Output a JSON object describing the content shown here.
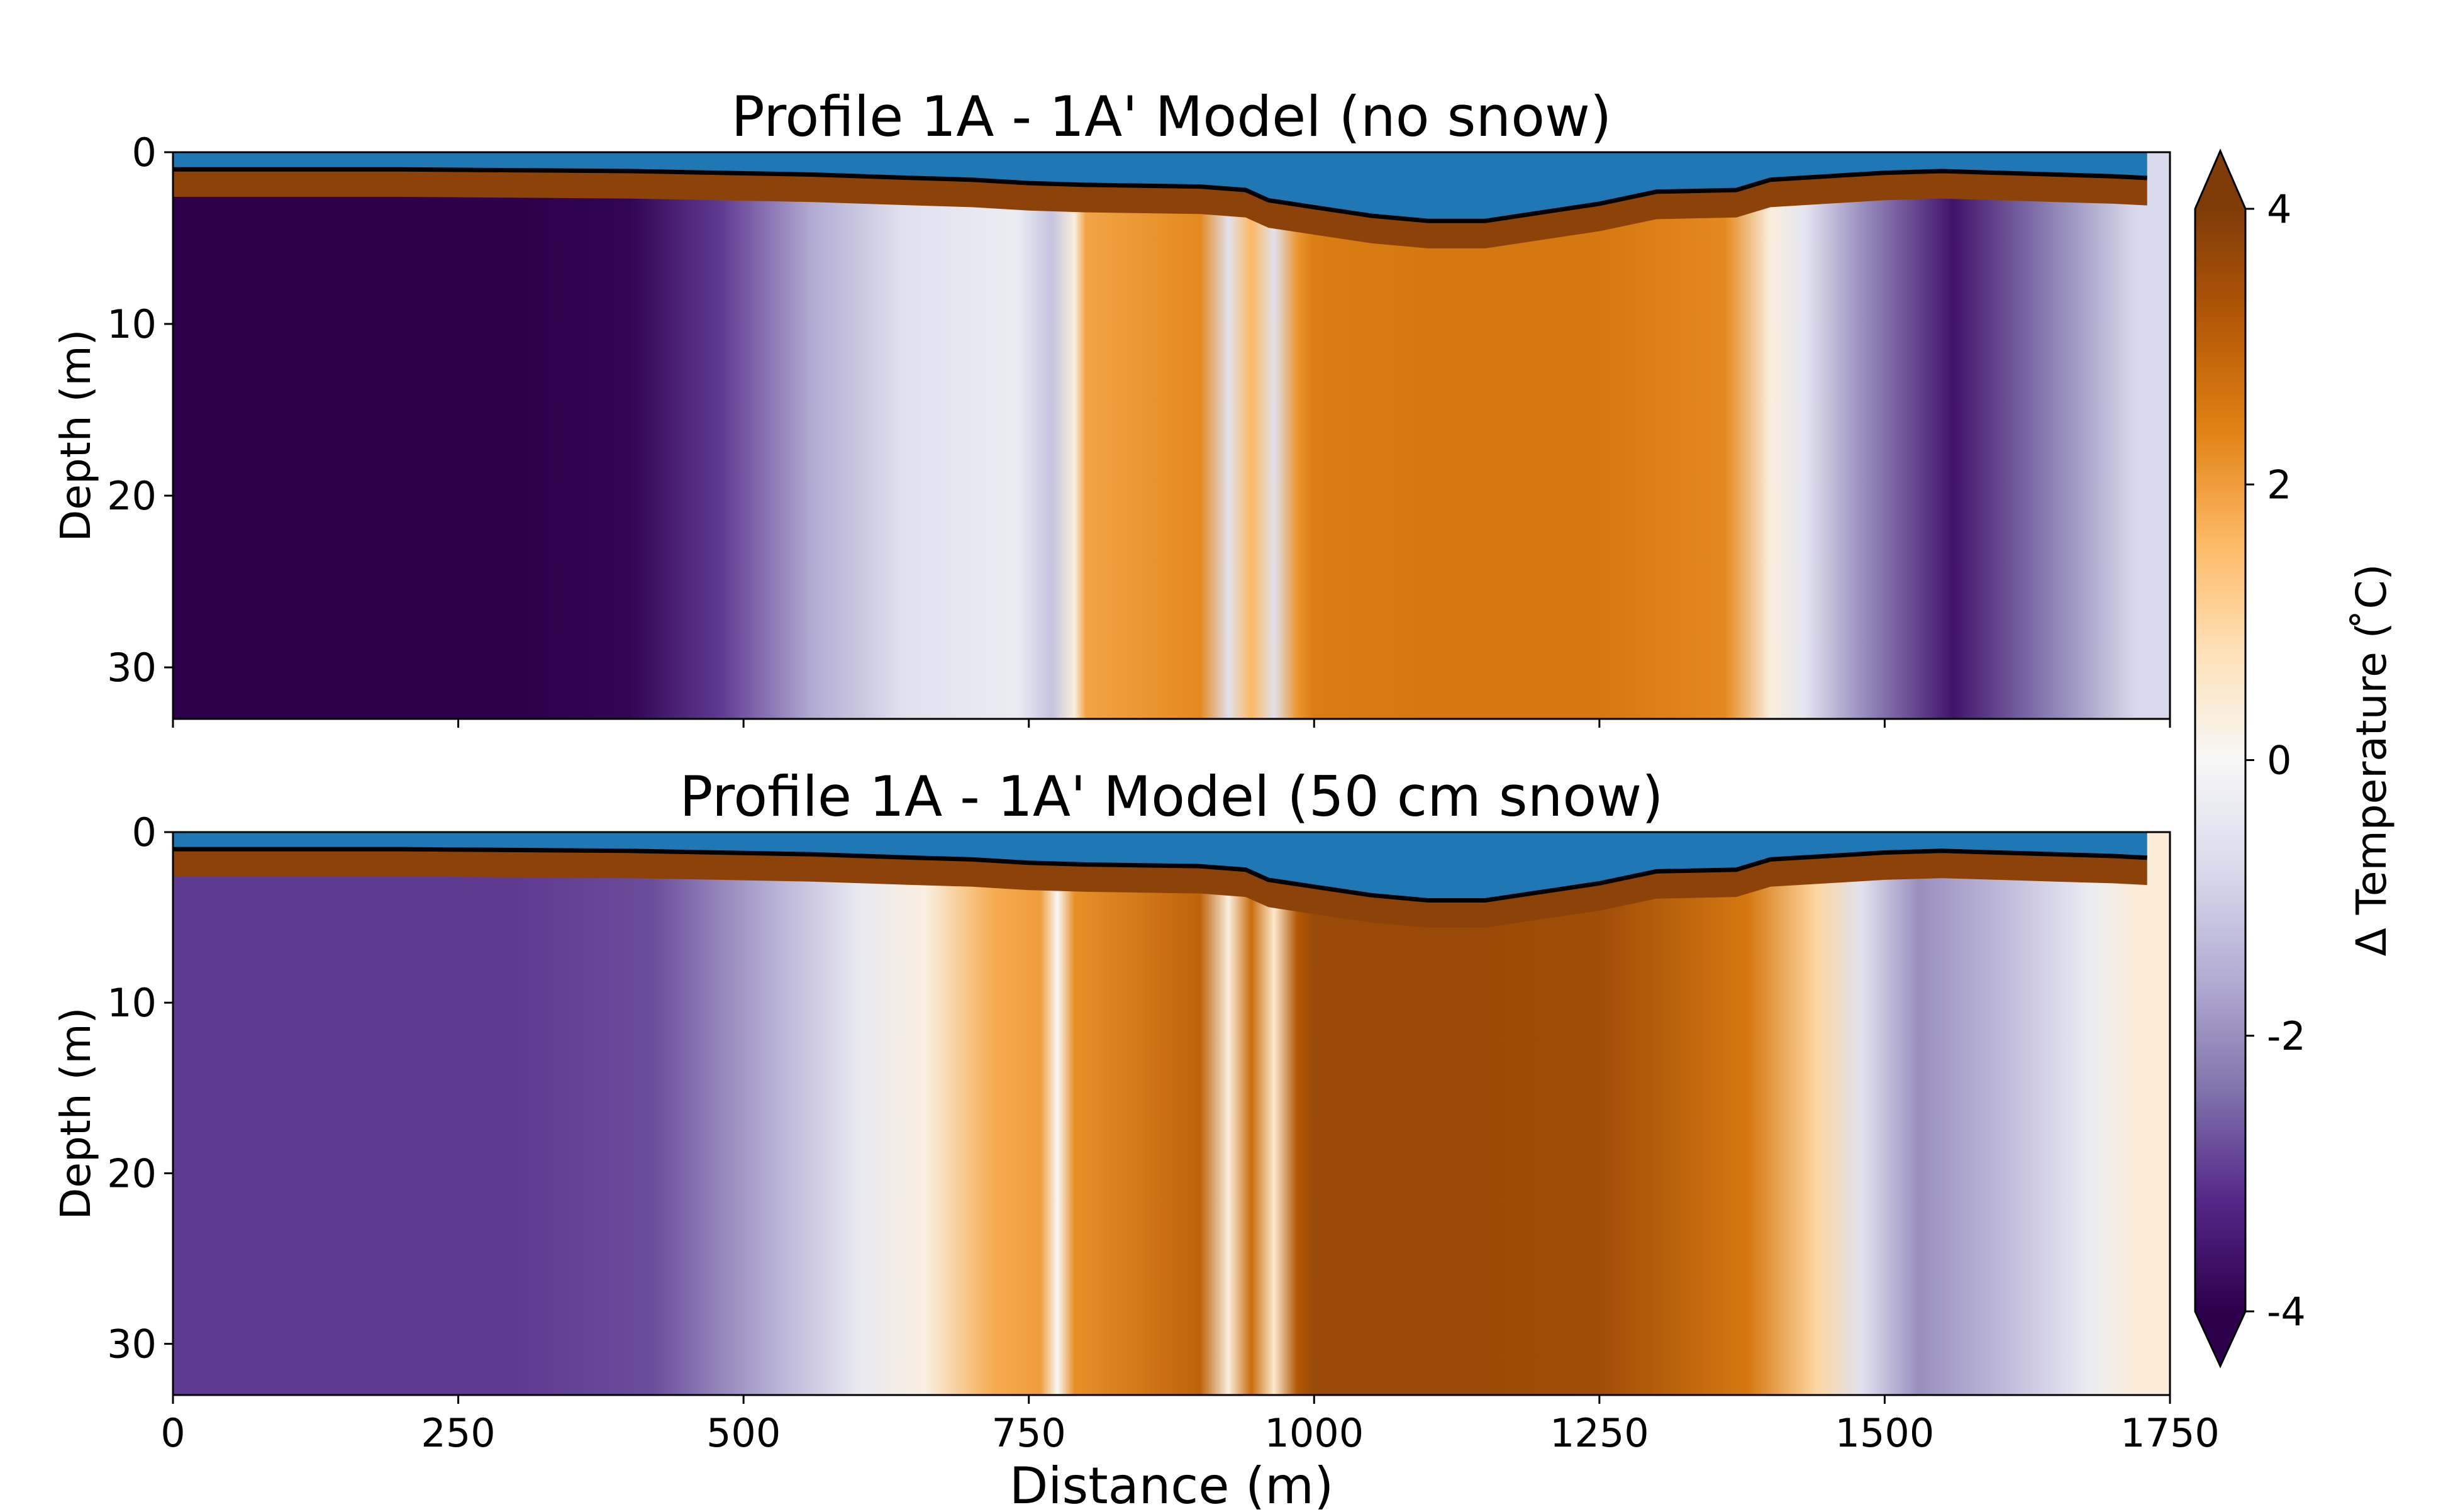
{
  "chart_data": {
    "type": "heatmap",
    "colorbar": {
      "label": "Δ Temperature ( ̊C)",
      "range": [
        -4,
        4
      ],
      "ticks": [
        "4",
        "2",
        "0",
        "-2",
        "-4"
      ],
      "colormap": "PuOr",
      "colors": [
        "#2d004b",
        "#542788",
        "#8073ac",
        "#b2abd2",
        "#d8daeb",
        "#f7f7f7",
        "#fee0b6",
        "#fdb863",
        "#e08214",
        "#b35806",
        "#7f3b08"
      ],
      "extend": "both"
    },
    "water_color": "#1f77b4",
    "panels": [
      {
        "title": "Profile 1A - 1A' Model (no snow)",
        "ylabel": "Depth (m)",
        "yticks": [
          "0",
          "10",
          "20",
          "30"
        ],
        "ylim": [
          33,
          0
        ],
        "xlim": [
          0,
          1750
        ],
        "xtick_labels_visible": false,
        "surface_profile": {
          "x": [
            0,
            200,
            400,
            560,
            650,
            700,
            750,
            800,
            900,
            940,
            960,
            1000,
            1050,
            1100,
            1150,
            1200,
            1250,
            1300,
            1370,
            1400,
            1450,
            1500,
            1550,
            1600,
            1650,
            1700,
            1730
          ],
          "depth": [
            1.0,
            1.0,
            1.1,
            1.3,
            1.5,
            1.6,
            1.8,
            1.9,
            2.0,
            2.2,
            2.8,
            3.2,
            3.7,
            4.0,
            4.0,
            3.5,
            3.0,
            2.3,
            2.2,
            1.6,
            1.4,
            1.2,
            1.1,
            1.2,
            1.3,
            1.4,
            1.5
          ]
        },
        "profile": {
          "x": [
            0,
            300,
            400,
            480,
            560,
            640,
            740,
            770,
            790,
            800,
            900,
            925,
            945,
            965,
            985,
            1000,
            1100,
            1250,
            1360,
            1400,
            1430,
            1480,
            1560,
            1640,
            1720
          ],
          "dT": [
            -4.0,
            -4.0,
            -3.9,
            -3.0,
            -1.6,
            -0.6,
            -0.3,
            -1.2,
            0.3,
            1.9,
            2.3,
            -0.6,
            1.6,
            -0.6,
            2.1,
            2.5,
            2.6,
            2.6,
            2.3,
            0.3,
            -0.5,
            -2.0,
            -3.6,
            -2.3,
            -0.8
          ]
        }
      },
      {
        "title": "Profile 1A - 1A' Model (50 cm snow)",
        "ylabel": "Depth (m)",
        "yticks": [
          "0",
          "10",
          "20",
          "30"
        ],
        "ylim": [
          33,
          0
        ],
        "xlim": [
          0,
          1750
        ],
        "xlabel": "Distance (m)",
        "xticks": [
          "0",
          "250",
          "500",
          "750",
          "1000",
          "1250",
          "1500",
          "1750"
        ],
        "surface_profile": {
          "x": [
            0,
            200,
            400,
            560,
            650,
            700,
            750,
            800,
            900,
            940,
            960,
            1000,
            1050,
            1100,
            1150,
            1200,
            1250,
            1300,
            1370,
            1400,
            1450,
            1500,
            1550,
            1600,
            1650,
            1700,
            1730
          ],
          "depth": [
            1.0,
            1.0,
            1.1,
            1.3,
            1.5,
            1.6,
            1.8,
            1.9,
            2.0,
            2.2,
            2.8,
            3.2,
            3.7,
            4.0,
            4.0,
            3.5,
            3.0,
            2.3,
            2.2,
            1.6,
            1.4,
            1.2,
            1.1,
            1.2,
            1.3,
            1.4,
            1.5
          ]
        },
        "profile": {
          "x": [
            0,
            300,
            420,
            520,
            600,
            660,
            720,
            760,
            775,
            790,
            900,
            925,
            945,
            965,
            985,
            1000,
            1100,
            1250,
            1380,
            1440,
            1480,
            1530,
            1600,
            1680,
            1720
          ],
          "dT": [
            -3.0,
            -3.0,
            -2.8,
            -1.6,
            -0.4,
            0.3,
            1.8,
            2.0,
            0.0,
            2.2,
            3.0,
            0.3,
            2.8,
            0.5,
            3.2,
            3.6,
            3.6,
            3.5,
            2.6,
            1.0,
            -0.6,
            -2.0,
            -1.4,
            -0.3,
            0.4
          ]
        }
      }
    ]
  }
}
